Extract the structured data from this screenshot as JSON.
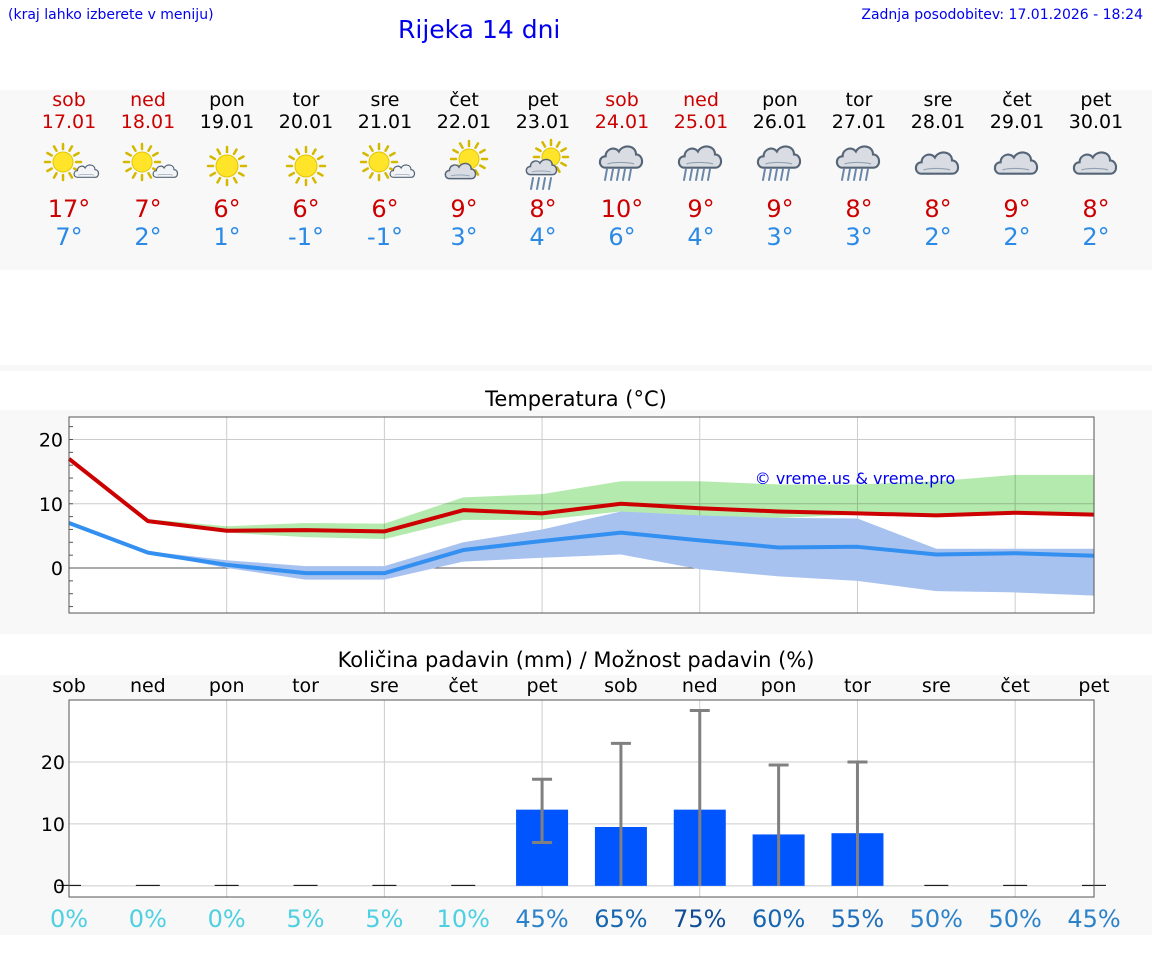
{
  "header": {
    "hint": "(kraj lahko izberete v meniju)",
    "title": "Rijeka 14 dni",
    "updated": "Zadnja posodobitev: 17.01.2026 - 18:24"
  },
  "days": [
    {
      "name": "sob",
      "date": "17.01",
      "weekend": true,
      "icon": "sun-cloud-icon",
      "max": "17°",
      "min": "7°"
    },
    {
      "name": "ned",
      "date": "18.01",
      "weekend": true,
      "icon": "sun-cloud-icon",
      "max": "7°",
      "min": "2°"
    },
    {
      "name": "pon",
      "date": "19.01",
      "weekend": false,
      "icon": "sun-icon",
      "max": "6°",
      "min": "1°"
    },
    {
      "name": "tor",
      "date": "20.01",
      "weekend": false,
      "icon": "sun-icon",
      "max": "6°",
      "min": "-1°"
    },
    {
      "name": "sre",
      "date": "21.01",
      "weekend": false,
      "icon": "sun-cloud-icon",
      "max": "6°",
      "min": "-1°"
    },
    {
      "name": "čet",
      "date": "22.01",
      "weekend": false,
      "icon": "cloud-sun-icon",
      "max": "9°",
      "min": "3°"
    },
    {
      "name": "pet",
      "date": "23.01",
      "weekend": false,
      "icon": "sun-rain-icon",
      "max": "8°",
      "min": "4°"
    },
    {
      "name": "sob",
      "date": "24.01",
      "weekend": true,
      "icon": "rain-cloud-icon",
      "max": "10°",
      "min": "6°"
    },
    {
      "name": "ned",
      "date": "25.01",
      "weekend": true,
      "icon": "rain-cloud-icon",
      "max": "9°",
      "min": "4°"
    },
    {
      "name": "pon",
      "date": "26.01",
      "weekend": false,
      "icon": "rain-cloud-icon",
      "max": "9°",
      "min": "3°"
    },
    {
      "name": "tor",
      "date": "27.01",
      "weekend": false,
      "icon": "rain-cloud-icon",
      "max": "8°",
      "min": "3°"
    },
    {
      "name": "sre",
      "date": "28.01",
      "weekend": false,
      "icon": "cloud-icon",
      "max": "8°",
      "min": "2°"
    },
    {
      "name": "čet",
      "date": "29.01",
      "weekend": false,
      "icon": "cloud-icon",
      "max": "9°",
      "min": "2°"
    },
    {
      "name": "pet",
      "date": "30.01",
      "weekend": false,
      "icon": "cloud-icon",
      "max": "8°",
      "min": "2°"
    }
  ],
  "colors": {
    "weekend": "#cc0000",
    "weekday": "#000000",
    "max": "#cc0000",
    "min": "#2a8ae6",
    "maxBand": "#a8e6a0",
    "minBand": "#a8c2f0",
    "overlap": "#7cc4a8",
    "bar": "#0055ff",
    "err": "#808080"
  },
  "chart_data": [
    {
      "type": "line",
      "title": "Temperatura (°C)",
      "watermark": "© vreme.us & vreme.pro",
      "x": [
        0,
        1,
        2,
        3,
        4,
        5,
        6,
        7,
        8,
        9,
        10,
        11,
        12,
        13
      ],
      "ylim": [
        -7,
        23.5
      ],
      "yticks": [
        0,
        10,
        20
      ],
      "series": [
        {
          "name": "max",
          "values": [
            17,
            7.3,
            5.8,
            5.9,
            5.7,
            9,
            8.5,
            10,
            9.3,
            8.8,
            8.5,
            8.2,
            8.6,
            8.3
          ]
        },
        {
          "name": "min",
          "values": [
            7,
            2.4,
            0.5,
            -0.8,
            -0.8,
            2.8,
            4.2,
            5.5,
            4.3,
            3.2,
            3.3,
            2.1,
            2.3,
            1.9
          ]
        }
      ],
      "bands": [
        {
          "name": "max-range",
          "low": [
            17,
            7.3,
            5.5,
            4.8,
            4.5,
            7.5,
            7.5,
            8.8,
            8.2,
            7.8,
            8.3,
            8.2,
            8.3,
            8.3
          ],
          "high": [
            17,
            7.6,
            6.5,
            7.0,
            6.9,
            11,
            11.5,
            13.5,
            13.5,
            13,
            13,
            13.5,
            14.5,
            14.5
          ]
        },
        {
          "name": "min-range",
          "low": [
            7,
            2.3,
            0,
            -1.8,
            -1.8,
            1.0,
            1.6,
            2.1,
            -0.2,
            -1.3,
            -2.0,
            -3.6,
            -3.8,
            -4.3
          ],
          "high": [
            7,
            2.6,
            1.2,
            0.3,
            0.3,
            4.0,
            6.0,
            8.8,
            8.2,
            7.8,
            7.7,
            3.0,
            3.0,
            3.0
          ]
        }
      ]
    },
    {
      "type": "bar",
      "title": "Količina padavin (mm) / Možnost padavin (%)",
      "categories": [
        "sob",
        "ned",
        "pon",
        "tor",
        "sre",
        "čet",
        "pet",
        "sob",
        "ned",
        "pon",
        "tor",
        "sre",
        "čet",
        "pet"
      ],
      "values": [
        0,
        0,
        0,
        0,
        0,
        0,
        12.3,
        9.5,
        12.3,
        8.3,
        8.5,
        0,
        0,
        0
      ],
      "err_low": [
        0,
        0,
        0,
        0,
        0,
        0,
        7,
        0,
        0,
        0,
        0,
        0,
        0,
        0
      ],
      "err_high": [
        0,
        0,
        0,
        0,
        0,
        0,
        17.2,
        23,
        28.3,
        19.5,
        20,
        0,
        0,
        0
      ],
      "ylim": [
        -1.8,
        30
      ],
      "yticks": [
        0,
        10,
        20
      ],
      "chance": [
        "0%",
        "0%",
        "0%",
        "5%",
        "5%",
        "10%",
        "45%",
        "65%",
        "75%",
        "60%",
        "55%",
        "50%",
        "50%",
        "45%"
      ],
      "chance_colors": [
        "#4dd0e1",
        "#4dd0e1",
        "#4dd0e1",
        "#4dd0e1",
        "#4dd0e1",
        "#4dd0e1",
        "#2b82c9",
        "#1565b0",
        "#104c96",
        "#1565b0",
        "#1e6dba",
        "#2b82c9",
        "#2b82c9",
        "#2b82c9"
      ]
    }
  ]
}
